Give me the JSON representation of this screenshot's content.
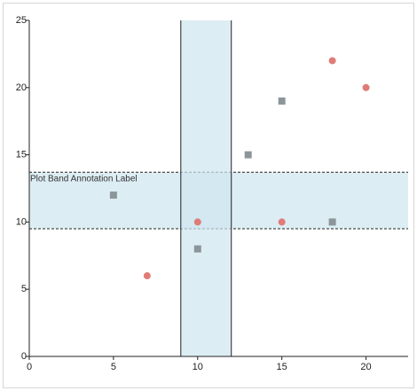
{
  "chart_data": {
    "type": "scatter",
    "title": "",
    "xlabel": "",
    "ylabel": "",
    "xlim": [
      0,
      22.5
    ],
    "ylim": [
      0,
      25
    ],
    "x_ticks": [
      0,
      5,
      10,
      15,
      20
    ],
    "y_ticks": [
      0,
      5,
      10,
      15,
      20,
      25
    ],
    "grid": false,
    "legend": "none",
    "series": [
      {
        "marker": "circle",
        "color": "#e07b78",
        "points": [
          [
            7,
            6
          ],
          [
            10,
            10
          ],
          [
            15,
            10
          ],
          [
            18,
            22
          ],
          [
            20,
            20
          ]
        ]
      },
      {
        "marker": "square",
        "color": "#8c9599",
        "points": [
          [
            5,
            12
          ],
          [
            10,
            8
          ],
          [
            13,
            15
          ],
          [
            15,
            19
          ],
          [
            18,
            10
          ]
        ]
      }
    ],
    "vertical_band": {
      "from": 9,
      "to": 12,
      "color": "#cfe6ef"
    },
    "horizontal_band": {
      "from": 9.5,
      "to": 13.7,
      "color": "#cfe6ef",
      "label": "Plot Band Annotation Label"
    }
  }
}
